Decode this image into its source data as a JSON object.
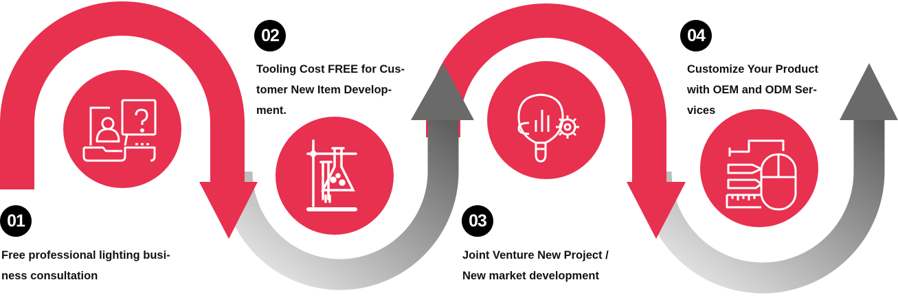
{
  "colors": {
    "accent": "#e8304f",
    "arrow_gray_light": "#e6e6e6",
    "arrow_gray_dark": "#666666",
    "badge": "#000000"
  },
  "steps": [
    {
      "number": "01",
      "icon": "online-consultation-icon",
      "lines": [
        "Free professional lighting busi-",
        "ness consultation"
      ]
    },
    {
      "number": "02",
      "icon": "laboratory-flask-icon",
      "lines": [
        "Tooling Cost FREE for Cus-",
        "tomer New Item Develop-",
        "ment."
      ]
    },
    {
      "number": "03",
      "icon": "idea-bulb-gear-icon",
      "lines": [
        "Joint Venture New Project /",
        "New market development"
      ]
    },
    {
      "number": "04",
      "icon": "design-tools-mouse-icon",
      "lines": [
        "Customize Your Product",
        "with OEM and ODM Ser-",
        "vices"
      ]
    }
  ]
}
